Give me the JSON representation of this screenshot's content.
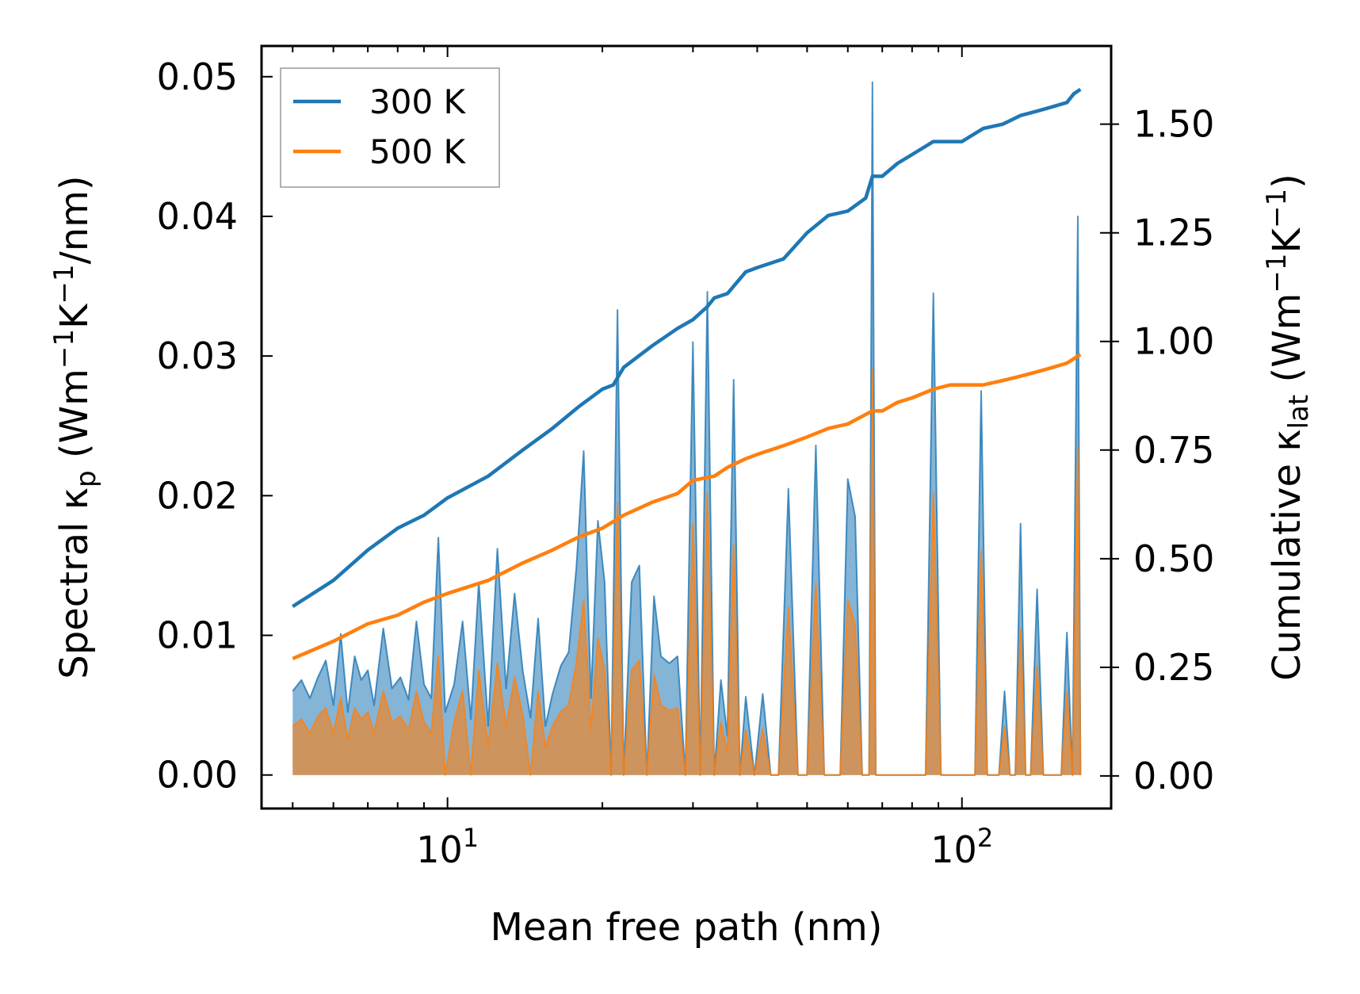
{
  "chart_data": {
    "type": "line+area",
    "xscale": "log",
    "xlabel": "Mean free path (nm)",
    "ylabel": "Spectral κp (Wm−1K−1/nm)",
    "ylabel_parts": {
      "pre": "Spectral κ",
      "sub": "p",
      "mid": " (Wm",
      "sup1": "−1",
      "mid2": "K",
      "sup2": "−1",
      "post": "/nm)"
    },
    "y2label": "Cumulative κlat (Wm−1K−1)",
    "y2label_parts": {
      "pre": "Cumulative κ",
      "sub": "lat",
      "mid": " (Wm",
      "sup1": "−1",
      "mid2": "K",
      "sup2": "−1",
      "post": ")"
    },
    "xlim": [
      4.35,
      195
    ],
    "ylim": [
      -0.0024,
      0.0522
    ],
    "y2lim": [
      -0.075,
      1.68
    ],
    "xticks": [
      {
        "value": 10,
        "base": "10",
        "exp": "1"
      },
      {
        "value": 100,
        "base": "10",
        "exp": "2"
      }
    ],
    "yticks": [
      {
        "value": 0.0,
        "label": "0.00"
      },
      {
        "value": 0.01,
        "label": "0.01"
      },
      {
        "value": 0.02,
        "label": "0.02"
      },
      {
        "value": 0.03,
        "label": "0.03"
      },
      {
        "value": 0.04,
        "label": "0.04"
      },
      {
        "value": 0.05,
        "label": "0.05"
      }
    ],
    "y2ticks": [
      {
        "value": 0.0,
        "label": "0.00"
      },
      {
        "value": 0.25,
        "label": "0.25"
      },
      {
        "value": 0.5,
        "label": "0.50"
      },
      {
        "value": 0.75,
        "label": "0.75"
      },
      {
        "value": 1.0,
        "label": "1.00"
      },
      {
        "value": 1.25,
        "label": "1.25"
      },
      {
        "value": 1.5,
        "label": "1.50"
      }
    ],
    "legend": {
      "location": "upper-left",
      "entries": [
        {
          "name": "300 K",
          "color": "#1f77b4"
        },
        {
          "name": "500 K",
          "color": "#ff7f0e"
        }
      ]
    },
    "cumulative_series": [
      {
        "name": "300 K",
        "color": "#1f77b4",
        "x": [
          5.0,
          6.0,
          7.0,
          8.0,
          9.0,
          10.0,
          12.0,
          14.0,
          16.0,
          18.0,
          20.0,
          21.0,
          22.0,
          25.0,
          28.0,
          30.0,
          32.0,
          33.0,
          35.0,
          38.0,
          40.0,
          45.0,
          50.0,
          55.0,
          60.0,
          65.0,
          67.0,
          70.0,
          75.0,
          80.0,
          88.0,
          95.0,
          100.0,
          110.0,
          120.0,
          130.0,
          140.0,
          150.0,
          160.0,
          165.0,
          170.0
        ],
        "y": [
          0.39,
          0.45,
          0.52,
          0.57,
          0.6,
          0.64,
          0.69,
          0.75,
          0.8,
          0.85,
          0.89,
          0.9,
          0.94,
          0.99,
          1.03,
          1.05,
          1.08,
          1.1,
          1.11,
          1.16,
          1.17,
          1.19,
          1.25,
          1.29,
          1.3,
          1.33,
          1.38,
          1.38,
          1.41,
          1.43,
          1.46,
          1.46,
          1.46,
          1.49,
          1.5,
          1.52,
          1.53,
          1.54,
          1.55,
          1.57,
          1.58
        ]
      },
      {
        "name": "500 K",
        "color": "#ff7f0e",
        "x": [
          5.0,
          6.0,
          7.0,
          8.0,
          9.0,
          10.0,
          12.0,
          14.0,
          16.0,
          18.0,
          20.0,
          22.0,
          25.0,
          28.0,
          30.0,
          33.0,
          35.0,
          38.0,
          40.0,
          45.0,
          50.0,
          55.0,
          60.0,
          67.0,
          70.0,
          75.0,
          80.0,
          88.0,
          95.0,
          100.0,
          110.0,
          120.0,
          130.0,
          140.0,
          150.0,
          160.0,
          170.0
        ],
        "y": [
          0.27,
          0.31,
          0.35,
          0.37,
          0.4,
          0.42,
          0.45,
          0.49,
          0.52,
          0.55,
          0.57,
          0.6,
          0.63,
          0.65,
          0.68,
          0.69,
          0.71,
          0.73,
          0.74,
          0.76,
          0.78,
          0.8,
          0.81,
          0.84,
          0.84,
          0.86,
          0.87,
          0.89,
          0.9,
          0.9,
          0.9,
          0.91,
          0.92,
          0.93,
          0.94,
          0.95,
          0.97
        ]
      }
    ],
    "spectral_series": [
      {
        "name": "300 K",
        "color": "#1f77b4",
        "x": [
          5.0,
          5.2,
          5.4,
          5.6,
          5.8,
          6.0,
          6.2,
          6.4,
          6.6,
          6.8,
          7.0,
          7.2,
          7.5,
          7.8,
          8.1,
          8.4,
          8.7,
          9.0,
          9.3,
          9.6,
          9.9,
          10.3,
          10.7,
          11.1,
          11.5,
          12.0,
          12.5,
          13.0,
          13.5,
          14.0,
          14.5,
          15.0,
          15.5,
          16.0,
          16.6,
          17.2,
          17.8,
          18.4,
          19.0,
          19.6,
          20.2,
          20.8,
          21.4,
          22.0,
          22.8,
          23.6,
          24.4,
          25.2,
          26.0,
          27.0,
          28.0,
          29.0,
          30.0,
          31.0,
          32.0,
          33.0,
          34.0,
          35.0,
          36.0,
          37.0,
          38.0,
          39.5,
          41.0,
          42.5,
          44.0,
          46.0,
          48.0,
          50.0,
          52.0,
          54.0,
          56.0,
          58.0,
          60.0,
          62.0,
          64.0,
          66.0,
          67.0,
          68.0,
          70.0,
          72.0,
          74.0,
          76.0,
          78.0,
          80.0,
          82.0,
          85.0,
          88.0,
          91.0,
          94.0,
          97.0,
          100.0,
          103.0,
          106.0,
          109.0,
          112.0,
          115.0,
          118.0,
          121.0,
          124.0,
          127.0,
          130.0,
          133.0,
          136.0,
          140.0,
          144.0,
          148.0,
          152.0,
          156.0,
          160.0,
          164.0,
          168.0,
          170.0
        ],
        "y": [
          0.006,
          0.0068,
          0.0055,
          0.007,
          0.0082,
          0.005,
          0.0101,
          0.0045,
          0.0085,
          0.0068,
          0.0075,
          0.005,
          0.0105,
          0.0062,
          0.007,
          0.0054,
          0.011,
          0.0065,
          0.0055,
          0.017,
          0.0045,
          0.0065,
          0.011,
          0.004,
          0.0138,
          0.0035,
          0.0162,
          0.0062,
          0.013,
          0.0075,
          0.0041,
          0.0112,
          0.0035,
          0.0058,
          0.0078,
          0.0088,
          0.0148,
          0.0232,
          0.0055,
          0.0182,
          0.0138,
          0.0,
          0.0333,
          0.0,
          0.0138,
          0.015,
          0.0,
          0.0128,
          0.0085,
          0.008,
          0.0085,
          0.0,
          0.031,
          0.0,
          0.0346,
          0.0,
          0.0068,
          0.0028,
          0.0283,
          0.0,
          0.0056,
          0.0,
          0.0058,
          0.0,
          0.0,
          0.0205,
          0.0,
          0.0,
          0.0236,
          0.0,
          0.0,
          0.0,
          0.0212,
          0.0185,
          0.0,
          0.0,
          0.0496,
          0.0,
          0.0,
          0.0,
          0.0,
          0.0,
          0.0,
          0.0,
          0.0,
          0.0,
          0.0345,
          0.0,
          0.0,
          0.0,
          0.0,
          0.0,
          0.0,
          0.0275,
          0.0,
          0.0,
          0.0,
          0.006,
          0.0,
          0.0,
          0.018,
          0.0,
          0.0,
          0.0133,
          0.0,
          0.0,
          0.0,
          0.0,
          0.0102,
          0.0,
          0.04,
          0.0
        ]
      },
      {
        "name": "500 K",
        "color": "#ff7f0e",
        "x": [
          5.0,
          5.2,
          5.4,
          5.6,
          5.8,
          6.0,
          6.2,
          6.4,
          6.6,
          6.8,
          7.0,
          7.2,
          7.5,
          7.8,
          8.1,
          8.4,
          8.7,
          9.0,
          9.3,
          9.6,
          9.9,
          10.3,
          10.7,
          11.1,
          11.5,
          12.0,
          12.5,
          13.0,
          13.5,
          14.0,
          14.5,
          15.0,
          15.5,
          16.0,
          16.6,
          17.2,
          17.8,
          18.4,
          19.0,
          19.6,
          20.2,
          20.8,
          21.4,
          22.0,
          22.8,
          23.6,
          24.4,
          25.2,
          26.0,
          27.0,
          28.0,
          29.0,
          30.0,
          31.0,
          32.0,
          33.0,
          34.0,
          35.0,
          36.0,
          37.0,
          38.0,
          39.5,
          41.0,
          42.5,
          44.0,
          46.0,
          48.0,
          50.0,
          52.0,
          54.0,
          56.0,
          58.0,
          60.0,
          62.0,
          64.0,
          66.0,
          67.0,
          68.0,
          70.0,
          72.0,
          74.0,
          76.0,
          78.0,
          80.0,
          82.0,
          85.0,
          88.0,
          91.0,
          94.0,
          97.0,
          100.0,
          103.0,
          106.0,
          109.0,
          112.0,
          115.0,
          118.0,
          121.0,
          124.0,
          127.0,
          130.0,
          133.0,
          136.0,
          140.0,
          144.0,
          148.0,
          152.0,
          156.0,
          160.0,
          164.0,
          168.0,
          170.0
        ],
        "y": [
          0.0035,
          0.004,
          0.003,
          0.0042,
          0.0048,
          0.003,
          0.0055,
          0.0025,
          0.0048,
          0.004,
          0.0045,
          0.003,
          0.006,
          0.0038,
          0.0042,
          0.0032,
          0.006,
          0.0038,
          0.003,
          0.0085,
          0.0,
          0.0038,
          0.006,
          0.0,
          0.0075,
          0.002,
          0.008,
          0.0035,
          0.007,
          0.0043,
          0.0,
          0.006,
          0.002,
          0.0035,
          0.0045,
          0.005,
          0.008,
          0.0125,
          0.0032,
          0.0098,
          0.0075,
          0.0,
          0.0195,
          0.0,
          0.0075,
          0.0082,
          0.0,
          0.0072,
          0.005,
          0.0046,
          0.0048,
          0.0,
          0.018,
          0.0,
          0.0202,
          0.0,
          0.0038,
          0.0016,
          0.0165,
          0.0,
          0.0032,
          0.0,
          0.0033,
          0.0,
          0.0,
          0.012,
          0.0,
          0.0,
          0.0137,
          0.0,
          0.0,
          0.0,
          0.0125,
          0.0108,
          0.0,
          0.0,
          0.029,
          0.0,
          0.0,
          0.0,
          0.0,
          0.0,
          0.0,
          0.0,
          0.0,
          0.0,
          0.0202,
          0.0,
          0.0,
          0.0,
          0.0,
          0.0,
          0.0,
          0.016,
          0.0,
          0.0,
          0.0,
          0.0035,
          0.0,
          0.0,
          0.0105,
          0.0,
          0.0,
          0.0078,
          0.0,
          0.0,
          0.0,
          0.0,
          0.006,
          0.0,
          0.0235,
          0.0
        ]
      }
    ]
  }
}
